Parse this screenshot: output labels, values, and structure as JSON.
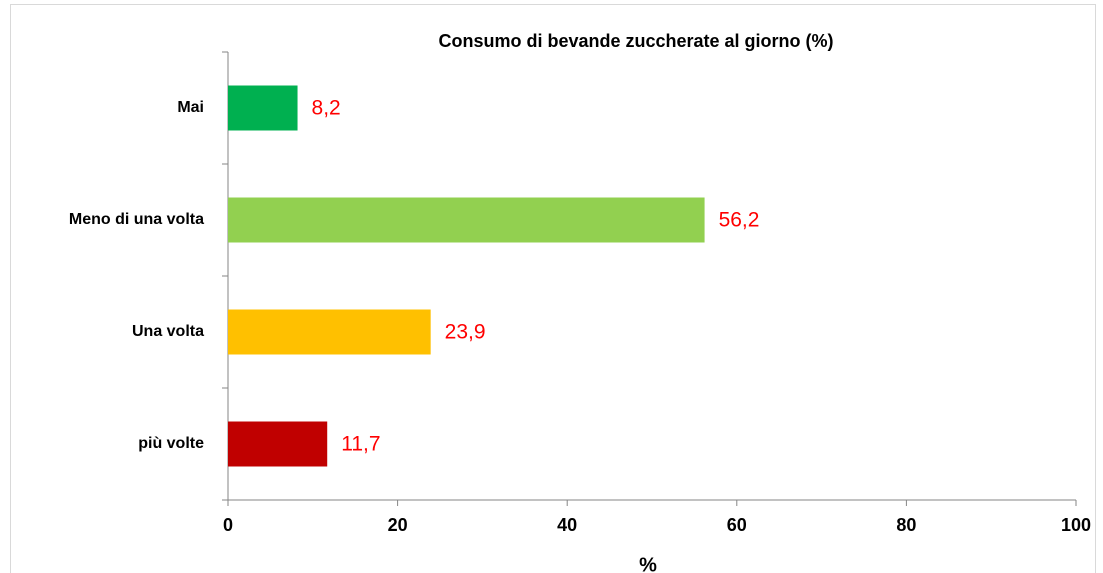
{
  "chart_data": {
    "type": "bar",
    "orientation": "horizontal",
    "title": "Consumo di bevande zuccherate al giorno (%)",
    "x_label": "%",
    "categories": [
      "Mai",
      "Meno di una volta",
      "Una volta",
      "più volte"
    ],
    "values": [
      8.2,
      56.2,
      23.9,
      11.7
    ],
    "value_labels": [
      "8,2",
      "56,2",
      "23,9",
      "11,7"
    ],
    "colors": [
      "#00b050",
      "#92d050",
      "#ffc000",
      "#c00000"
    ],
    "value_label_color": "#ff0000",
    "xlim": [
      0,
      100
    ],
    "xticks": [
      0,
      20,
      40,
      60,
      80,
      100
    ],
    "grid": false
  }
}
